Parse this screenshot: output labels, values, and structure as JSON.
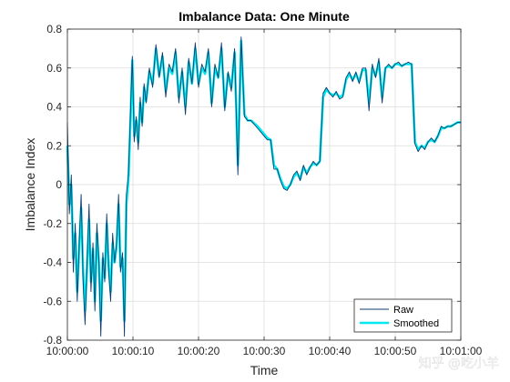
{
  "chart_data": {
    "type": "line",
    "title": "Imbalance Data: One Minute",
    "xlabel": "Time",
    "ylabel": "Imbalance Index",
    "xlim": [
      0,
      60
    ],
    "ylim": [
      -0.8,
      0.8
    ],
    "x_ticks": [
      0,
      10,
      20,
      30,
      40,
      50,
      60
    ],
    "x_tick_labels": [
      "10:00:00",
      "10:00:10",
      "10:00:20",
      "10:00:30",
      "10:00:40",
      "10:00:50",
      "10:01:00"
    ],
    "y_ticks": [
      -0.8,
      -0.6,
      -0.4,
      -0.2,
      0,
      0.2,
      0.4,
      0.6,
      0.8
    ],
    "y_tick_labels": [
      "-0.8",
      "-0.6",
      "-0.4",
      "-0.2",
      "0",
      "0.2",
      "0.4",
      "0.6",
      "0.8"
    ],
    "grid": true,
    "legend_position": "bottom-right",
    "series": [
      {
        "name": "Raw",
        "color": "#0b3d6e",
        "x": [
          0,
          0.3,
          0.6,
          0.9,
          1.2,
          1.5,
          1.8,
          2.1,
          2.4,
          2.7,
          3.0,
          3.3,
          3.6,
          3.9,
          4.2,
          4.5,
          4.8,
          5.1,
          5.4,
          5.7,
          6.0,
          6.3,
          6.6,
          6.9,
          7.2,
          7.5,
          7.8,
          8.1,
          8.4,
          8.7,
          9.0,
          9.3,
          9.6,
          9.9,
          10.2,
          10.5,
          10.8,
          11.1,
          11.4,
          11.7,
          12.0,
          12.5,
          13.0,
          13.5,
          14.0,
          14.5,
          15.0,
          15.5,
          16.0,
          16.5,
          17.0,
          17.5,
          18.0,
          18.5,
          19.0,
          19.5,
          20.0,
          20.5,
          21.0,
          21.5,
          22.0,
          22.5,
          23.0,
          23.5,
          24.0,
          24.5,
          25.0,
          25.5,
          26.0,
          26.5,
          27.0,
          27.5,
          28.0,
          29.0,
          30.0,
          30.5,
          31.0,
          31.5,
          32.0,
          32.5,
          33.0,
          33.5,
          34.0,
          34.5,
          35.0,
          35.5,
          36.0,
          36.5,
          37.0,
          37.5,
          38.0,
          38.5,
          39.0,
          39.5,
          40.0,
          40.5,
          41.0,
          41.5,
          42.0,
          42.5,
          43.0,
          43.5,
          44.0,
          44.5,
          45.0,
          45.5,
          46.0,
          46.5,
          47.0,
          47.5,
          48.0,
          48.5,
          49.0,
          49.5,
          50.0,
          50.5,
          51.0,
          51.5,
          52.0,
          52.5,
          53.0,
          53.5,
          54.0,
          54.5,
          55.0,
          55.5,
          56.0,
          56.5,
          57.0,
          57.5,
          58.0,
          58.5,
          59.0,
          59.5,
          60.0
        ],
        "y": [
          0.32,
          -0.15,
          0.05,
          -0.45,
          -0.2,
          -0.6,
          -0.3,
          -0.05,
          -0.5,
          -0.72,
          -0.4,
          -0.1,
          -0.55,
          -0.3,
          -0.65,
          -0.2,
          -0.4,
          -0.78,
          -0.35,
          -0.5,
          -0.15,
          -0.45,
          -0.6,
          -0.25,
          -0.4,
          -0.3,
          -0.05,
          -0.45,
          -0.35,
          -0.78,
          -0.05,
          0.05,
          0.35,
          0.66,
          0.22,
          0.35,
          0.18,
          0.45,
          0.3,
          0.52,
          0.42,
          0.6,
          0.5,
          0.72,
          0.55,
          0.68,
          0.45,
          0.62,
          0.58,
          0.7,
          0.42,
          0.6,
          0.36,
          0.65,
          0.52,
          0.73,
          0.5,
          0.62,
          0.58,
          0.7,
          0.4,
          0.62,
          0.55,
          0.73,
          0.38,
          0.58,
          0.48,
          0.7,
          0.05,
          0.76,
          0.35,
          0.33,
          0.33,
          0.29,
          0.25,
          0.23,
          0.23,
          0.08,
          0.08,
          0.02,
          -0.02,
          -0.03,
          0.0,
          0.05,
          0.07,
          0.02,
          0.1,
          0.05,
          0.09,
          0.12,
          0.1,
          0.12,
          0.47,
          0.5,
          0.47,
          0.45,
          0.48,
          0.44,
          0.45,
          0.55,
          0.58,
          0.53,
          0.58,
          0.52,
          0.6,
          0.6,
          0.38,
          0.62,
          0.55,
          0.65,
          0.42,
          0.6,
          0.62,
          0.6,
          0.62,
          0.63,
          0.61,
          0.62,
          0.63,
          0.62,
          0.21,
          0.17,
          0.2,
          0.18,
          0.22,
          0.24,
          0.22,
          0.25,
          0.3,
          0.29,
          0.3,
          0.3,
          0.31,
          0.32,
          0.32
        ]
      },
      {
        "name": "Smoothed",
        "color": "#00e8f0",
        "x": [
          0,
          0.3,
          0.6,
          0.9,
          1.2,
          1.5,
          1.8,
          2.1,
          2.4,
          2.7,
          3.0,
          3.3,
          3.6,
          3.9,
          4.2,
          4.5,
          4.8,
          5.1,
          5.4,
          5.7,
          6.0,
          6.3,
          6.6,
          6.9,
          7.2,
          7.5,
          7.8,
          8.1,
          8.4,
          8.7,
          9.0,
          9.3,
          9.6,
          9.9,
          10.2,
          10.5,
          10.8,
          11.1,
          11.4,
          11.7,
          12.0,
          12.5,
          13.0,
          13.5,
          14.0,
          14.5,
          15.0,
          15.5,
          16.0,
          16.5,
          17.0,
          17.5,
          18.0,
          18.5,
          19.0,
          19.5,
          20.0,
          20.5,
          21.0,
          21.5,
          22.0,
          22.5,
          23.0,
          23.5,
          24.0,
          24.5,
          25.0,
          25.5,
          26.0,
          26.5,
          27.0,
          27.5,
          28.0,
          29.0,
          30.0,
          30.5,
          31.0,
          31.5,
          32.0,
          32.5,
          33.0,
          33.5,
          34.0,
          34.5,
          35.0,
          35.5,
          36.0,
          36.5,
          37.0,
          37.5,
          38.0,
          38.5,
          39.0,
          39.5,
          40.0,
          40.5,
          41.0,
          41.5,
          42.0,
          42.5,
          43.0,
          43.5,
          44.0,
          44.5,
          45.0,
          45.5,
          46.0,
          46.5,
          47.0,
          47.5,
          48.0,
          48.5,
          49.0,
          49.5,
          50.0,
          50.5,
          51.0,
          51.5,
          52.0,
          52.5,
          53.0,
          53.5,
          54.0,
          54.5,
          55.0,
          55.5,
          56.0,
          56.5,
          57.0,
          57.5,
          58.0,
          58.5,
          59.0,
          59.5,
          60.0
        ],
        "y": [
          0.2,
          -0.1,
          0.0,
          -0.38,
          -0.25,
          -0.55,
          -0.32,
          -0.12,
          -0.45,
          -0.65,
          -0.42,
          -0.18,
          -0.5,
          -0.33,
          -0.6,
          -0.25,
          -0.4,
          -0.7,
          -0.38,
          -0.48,
          -0.2,
          -0.42,
          -0.55,
          -0.3,
          -0.4,
          -0.32,
          -0.1,
          -0.42,
          -0.38,
          -0.7,
          -0.1,
          0.02,
          0.3,
          0.64,
          0.25,
          0.33,
          0.22,
          0.42,
          0.32,
          0.5,
          0.43,
          0.58,
          0.52,
          0.7,
          0.56,
          0.66,
          0.48,
          0.6,
          0.57,
          0.68,
          0.45,
          0.58,
          0.4,
          0.63,
          0.52,
          0.7,
          0.52,
          0.6,
          0.57,
          0.68,
          0.42,
          0.6,
          0.55,
          0.7,
          0.4,
          0.57,
          0.5,
          0.68,
          0.1,
          0.74,
          0.36,
          0.33,
          0.33,
          0.3,
          0.26,
          0.24,
          0.23,
          0.1,
          0.08,
          0.03,
          -0.01,
          -0.02,
          0.0,
          0.04,
          0.06,
          0.03,
          0.09,
          0.06,
          0.09,
          0.11,
          0.1,
          0.12,
          0.45,
          0.49,
          0.47,
          0.46,
          0.47,
          0.45,
          0.46,
          0.54,
          0.57,
          0.54,
          0.57,
          0.53,
          0.59,
          0.59,
          0.42,
          0.6,
          0.56,
          0.63,
          0.45,
          0.6,
          0.61,
          0.6,
          0.62,
          0.62,
          0.61,
          0.62,
          0.62,
          0.62,
          0.22,
          0.18,
          0.2,
          0.19,
          0.22,
          0.23,
          0.22,
          0.25,
          0.29,
          0.29,
          0.3,
          0.3,
          0.31,
          0.32,
          0.32
        ]
      }
    ]
  },
  "watermark": "知乎 @吃小羊"
}
